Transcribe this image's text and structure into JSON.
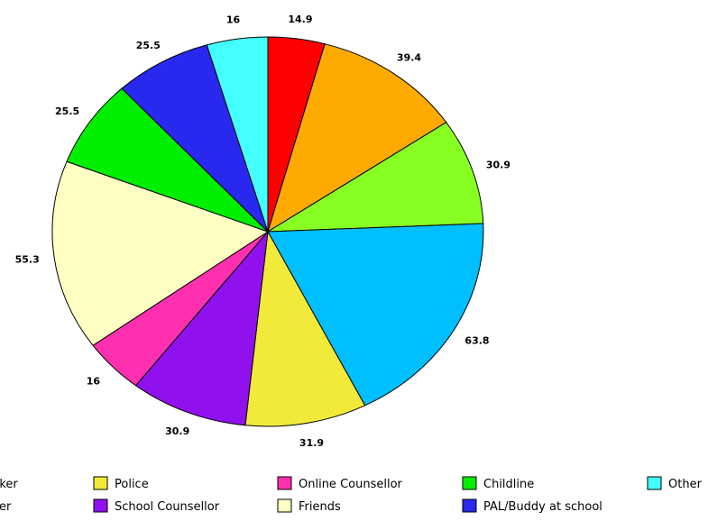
{
  "chart_data": {
    "type": "pie",
    "title": "",
    "slices": [
      {
        "label": "",
        "value": 14.9,
        "color": "#ff0000"
      },
      {
        "label": "",
        "value": 39.4,
        "color": "#ffaa00"
      },
      {
        "label": "",
        "value": 30.9,
        "color": "#88ff22"
      },
      {
        "label": "",
        "value": 63.8,
        "color": "#00bfff"
      },
      {
        "label": "Police",
        "value": 31.9,
        "color": "#f2ea3a"
      },
      {
        "label": "School Counsellor",
        "value": 30.9,
        "color": "#9010ee"
      },
      {
        "label": "Online Counsellor",
        "value": 16,
        "color": "#ff30b0"
      },
      {
        "label": "Friends",
        "value": 55.3,
        "color": "#ffffc4"
      },
      {
        "label": "Childline",
        "value": 25.5,
        "color": "#00ee00"
      },
      {
        "label": "PAL/Buddy at school",
        "value": 25.5,
        "color": "#2828ee"
      },
      {
        "label": "Other",
        "value": 16,
        "color": "#44ffff"
      }
    ],
    "legend": [
      {
        "label": "rker",
        "color": ""
      },
      {
        "label": "rer",
        "color": ""
      },
      {
        "label": "Police",
        "color": "#f2ea3a"
      },
      {
        "label": "School Counsellor",
        "color": "#9010ee"
      },
      {
        "label": "Online Counsellor",
        "color": "#ff30b0"
      },
      {
        "label": "Friends",
        "color": "#ffffc4"
      },
      {
        "label": "Childline",
        "color": "#00ee00"
      },
      {
        "label": "PAL/Buddy at school",
        "color": "#2828ee"
      },
      {
        "label": "Other",
        "color": "#44ffff"
      }
    ],
    "legend_position": "bottom",
    "start_angle_deg": 0,
    "direction": "clockwise"
  }
}
